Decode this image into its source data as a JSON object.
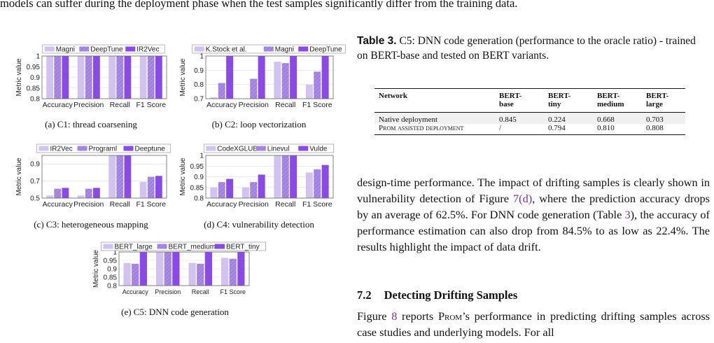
{
  "top_text": "models can suffer during the deployment phase when the test samples significantly differ from the training data.",
  "charts": [
    {
      "id": "a",
      "caption": "(a) C1: thread coarsening",
      "ylabel": "Metric value",
      "legend": [
        "Magni",
        "DeepTune",
        "IR2Vec"
      ],
      "colors": [
        "#d2c2f0",
        "#a98be6",
        "#8a4ae6"
      ],
      "patterns": [
        "solid",
        "hatch",
        "solid"
      ],
      "ylim": [
        0.8,
        1.0
      ],
      "yticks": [
        "0.8",
        "0.85",
        "0.9",
        "0.95",
        "1"
      ],
      "ytick_values": [
        0.8,
        0.85,
        0.9,
        0.95,
        1.0
      ],
      "categories": [
        "Accuracy",
        "Precision",
        "Recall",
        "F1 Score"
      ],
      "series": [
        {
          "name": "Magni",
          "values": [
            1.0,
            1.0,
            1.0,
            1.0
          ]
        },
        {
          "name": "DeepTune",
          "values": [
            1.0,
            1.0,
            1.0,
            1.0
          ]
        },
        {
          "name": "IR2Vec",
          "values": [
            1.0,
            1.0,
            1.0,
            1.0
          ]
        }
      ]
    },
    {
      "id": "b",
      "caption": "(b) C2: loop vectorization",
      "ylabel": "Metric value",
      "legend": [
        "K.Stock et al.",
        "Magni",
        "DeepTune"
      ],
      "colors": [
        "#d2c2f0",
        "#a98be6",
        "#8a4ae6"
      ],
      "patterns": [
        "solid",
        "hatch",
        "solid"
      ],
      "ylim": [
        0.7,
        1.0
      ],
      "yticks": [
        "0.7",
        "0.8",
        "0.9",
        "1"
      ],
      "ytick_values": [
        0.7,
        0.8,
        0.9,
        1.0
      ],
      "categories": [
        "Accuracy",
        "Precision",
        "Recall",
        "F1 Score"
      ],
      "series": [
        {
          "name": "K.Stock et al.",
          "values": [
            0.71,
            0.7,
            0.96,
            0.8
          ]
        },
        {
          "name": "Magni",
          "values": [
            0.81,
            0.84,
            0.95,
            0.89
          ]
        },
        {
          "name": "DeepTune",
          "values": [
            1.0,
            1.0,
            1.0,
            1.0
          ]
        }
      ]
    },
    {
      "id": "c",
      "caption": "(c) C3: heterogeneous mapping",
      "ylabel": "Metric value",
      "legend": [
        "IR2Vec",
        "Programl",
        "Deeptune"
      ],
      "colors": [
        "#d2c2f0",
        "#a98be6",
        "#8a4ae6"
      ],
      "patterns": [
        "solid",
        "hatch",
        "solid"
      ],
      "ylim": [
        0.5,
        1.0
      ],
      "yticks": [
        "0.5",
        "0.7",
        "0.9"
      ],
      "ytick_values": [
        0.5,
        0.7,
        0.9
      ],
      "categories": [
        "Accuracy",
        "Precision",
        "Recall",
        "F1 Score"
      ],
      "series": [
        {
          "name": "IR2Vec",
          "values": [
            0.53,
            0.53,
            1.0,
            0.69
          ]
        },
        {
          "name": "Programl",
          "values": [
            0.61,
            0.61,
            1.0,
            0.75
          ]
        },
        {
          "name": "Deeptune",
          "values": [
            0.62,
            0.62,
            1.0,
            0.76
          ]
        }
      ]
    },
    {
      "id": "d",
      "caption": "(d) C4: vulnerability detection",
      "ylabel": "Metric value",
      "legend": [
        "CodeXGLUE",
        "Linevul",
        "Vulde"
      ],
      "colors": [
        "#d2c2f0",
        "#a98be6",
        "#8a4ae6"
      ],
      "patterns": [
        "solid",
        "hatch",
        "solid"
      ],
      "ylim": [
        0.8,
        1.0
      ],
      "yticks": [
        "0.8",
        "0.85",
        "0.9",
        "0.95",
        "1"
      ],
      "ytick_values": [
        0.8,
        0.85,
        0.9,
        0.95,
        1.0
      ],
      "categories": [
        "Accuracy",
        "Precision",
        "Recall",
        "F1 Score"
      ],
      "series": [
        {
          "name": "CodeXGLUE",
          "values": [
            0.85,
            0.85,
            1.0,
            0.92
          ]
        },
        {
          "name": "Linevul",
          "values": [
            0.875,
            0.875,
            1.0,
            0.935
          ]
        },
        {
          "name": "Vulde",
          "values": [
            0.89,
            0.91,
            1.0,
            0.955
          ]
        }
      ]
    },
    {
      "id": "e",
      "caption": "(e) C5: DNN code generation",
      "ylabel": "Metric value",
      "legend": [
        "BERT_large",
        "BERT_medium",
        "BERT_tiny"
      ],
      "colors": [
        "#d2c2f0",
        "#a98be6",
        "#8a4ae6"
      ],
      "patterns": [
        "solid",
        "hatch",
        "solid"
      ],
      "ylim": [
        0.8,
        1.0
      ],
      "yticks": [
        "0.8",
        "0.85",
        "0.9",
        "0.95",
        "1"
      ],
      "ytick_values": [
        0.8,
        0.85,
        0.9,
        0.95,
        1.0
      ],
      "categories": [
        "Accuracy",
        "Precision",
        "Recall",
        "F1 Score"
      ],
      "series": [
        {
          "name": "BERT_large",
          "values": [
            0.935,
            1.0,
            0.935,
            0.965
          ]
        },
        {
          "name": "BERT_medium",
          "values": [
            0.93,
            1.0,
            0.93,
            0.96
          ]
        },
        {
          "name": "BERT_tiny",
          "values": [
            1.0,
            1.0,
            1.0,
            1.0
          ]
        }
      ]
    }
  ],
  "table": {
    "caption_label": "Table 3.",
    "caption_text": " C5: DNN code generation (performance to the oracle ratio) - trained on BERT-base and tested on BERT variants.",
    "headers": [
      "Network",
      "BERT-\nbase",
      "BERT-\ntiny",
      "BERT-\nmedium",
      "BERT-\nlarge"
    ],
    "rows": [
      [
        "Native deployment",
        "0.845",
        "0.224",
        "0.668",
        "0.703"
      ],
      [
        "Prom assisted deployment",
        "/",
        "0.794",
        "0.810",
        "0.808"
      ]
    ]
  },
  "body_paragraph": {
    "p1": "design-time performance. The impact of drifting samples is clearly shown in vulnerability detection of Figure ",
    "link1": "7(d)",
    "p2": ", where the prediction accuracy drops by an average of 62.5%. For DNN code generation (Table ",
    "link2": "3",
    "p3": "), the accuracy of performance estimation can also drop from 84.5% to as low as 22.4%. The results highlight the impact of data drift."
  },
  "section": {
    "number": "7.2",
    "title": "Detecting Drifting Samples"
  },
  "final_paragraph": {
    "p1": "Figure ",
    "link1": "8",
    "p2": " reports ",
    "prom": "Prom",
    "p3": "’s performance in predicting drifting samples across case studies and underlying models. For all"
  }
}
